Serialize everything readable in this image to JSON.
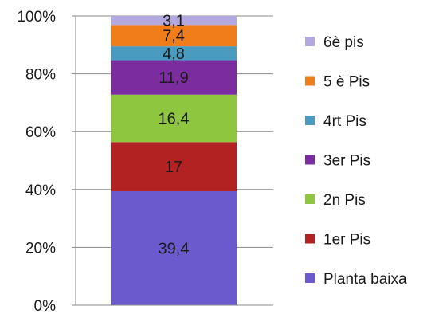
{
  "chart_data": {
    "type": "bar",
    "stacked": true,
    "percent_stacked": true,
    "title": "",
    "xlabel": "",
    "ylabel": "",
    "ylim": [
      0,
      100
    ],
    "y_ticks": [
      "0%",
      "20%",
      "40%",
      "60%",
      "80%",
      "100%"
    ],
    "y_tick_values": [
      0,
      20,
      40,
      60,
      80,
      100
    ],
    "grid": true,
    "legend_position": "right",
    "categories": [
      ""
    ],
    "series": [
      {
        "name": "Planta baixa",
        "values": [
          39.4
        ],
        "label": "39,4",
        "color": "#6a5acd"
      },
      {
        "name": "1er Pis",
        "values": [
          17
        ],
        "label": "17",
        "color": "#b22222"
      },
      {
        "name": "2n Pis",
        "values": [
          16.4
        ],
        "label": "16,4",
        "color": "#8ec63f"
      },
      {
        "name": "3er Pis",
        "values": [
          11.9
        ],
        "label": "11,9",
        "color": "#7b2c9e"
      },
      {
        "name": "4rt Pis",
        "values": [
          4.8
        ],
        "label": "4,8",
        "color": "#4a9bc0"
      },
      {
        "name": "5 è Pis",
        "values": [
          7.4
        ],
        "label": "7,4",
        "color": "#f07d1a"
      },
      {
        "name": "6è pis",
        "values": [
          3.1
        ],
        "label": "3,1",
        "color": "#b3a9e0"
      }
    ]
  }
}
